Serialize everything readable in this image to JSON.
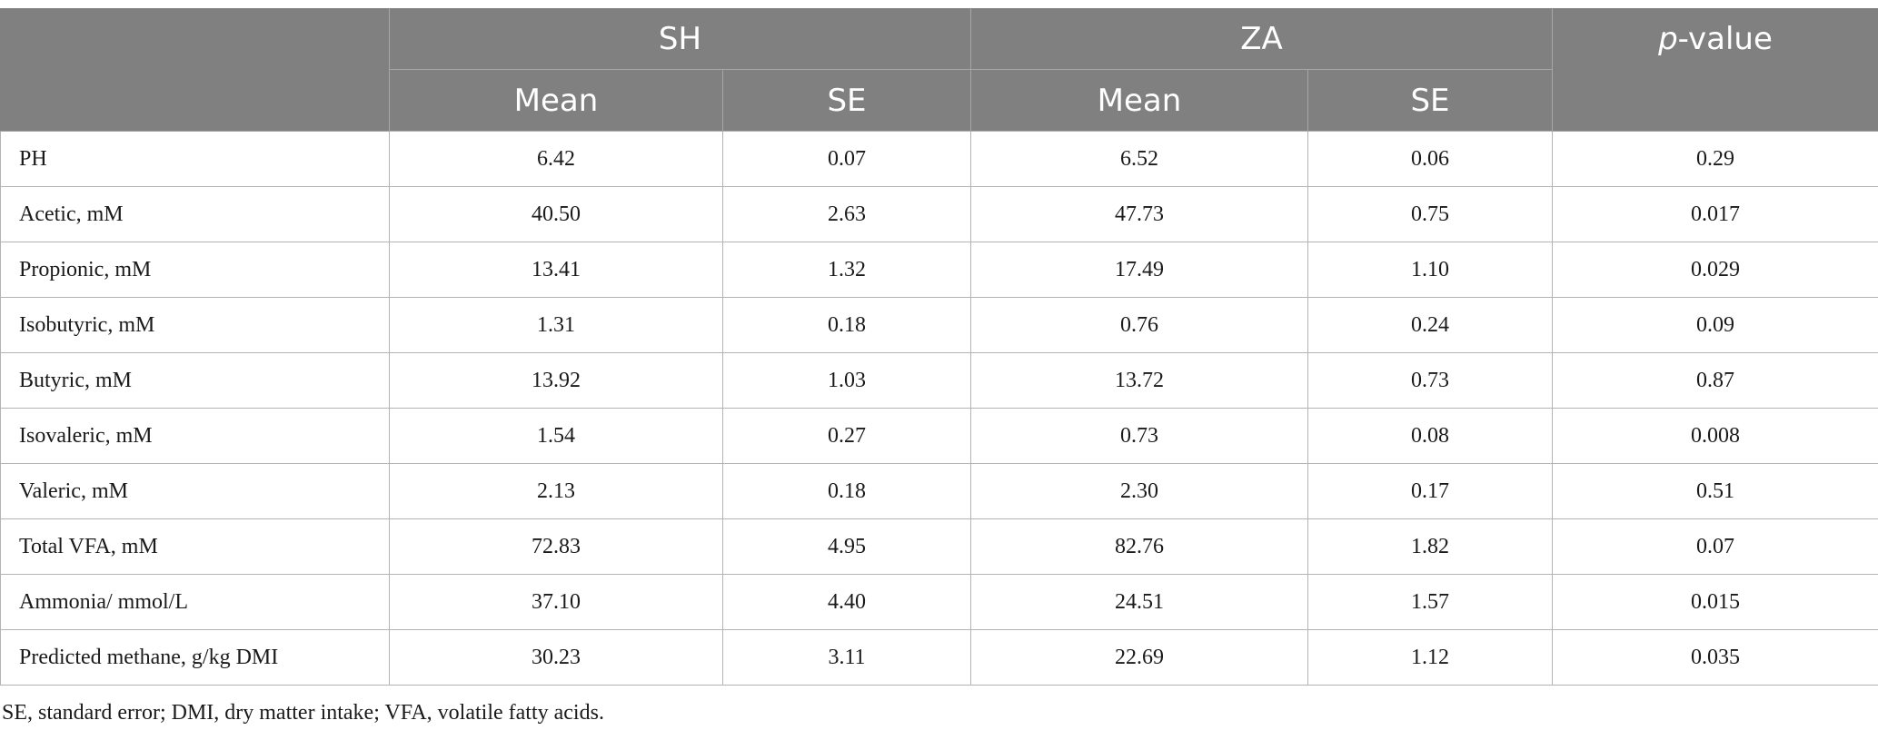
{
  "header": {
    "group1": "SH",
    "group2": "ZA",
    "pvalue_italic": "p",
    "pvalue_rest": "-value",
    "sub": [
      "Mean",
      "SE",
      "Mean",
      "SE"
    ]
  },
  "rows": [
    {
      "label": "PH",
      "sh_mean": "6.42",
      "sh_se": "0.07",
      "za_mean": "6.52",
      "za_se": "0.06",
      "p": "0.29"
    },
    {
      "label": "Acetic, mM",
      "sh_mean": "40.50",
      "sh_se": "2.63",
      "za_mean": "47.73",
      "za_se": "0.75",
      "p": "0.017"
    },
    {
      "label": "Propionic, mM",
      "sh_mean": "13.41",
      "sh_se": "1.32",
      "za_mean": "17.49",
      "za_se": "1.10",
      "p": "0.029"
    },
    {
      "label": "Isobutyric, mM",
      "sh_mean": "1.31",
      "sh_se": "0.18",
      "za_mean": "0.76",
      "za_se": "0.24",
      "p": "0.09"
    },
    {
      "label": "Butyric, mM",
      "sh_mean": "13.92",
      "sh_se": "1.03",
      "za_mean": "13.72",
      "za_se": "0.73",
      "p": "0.87"
    },
    {
      "label": "Isovaleric, mM",
      "sh_mean": "1.54",
      "sh_se": "0.27",
      "za_mean": "0.73",
      "za_se": "0.08",
      "p": "0.008"
    },
    {
      "label": "Valeric, mM",
      "sh_mean": "2.13",
      "sh_se": "0.18",
      "za_mean": "2.30",
      "za_se": "0.17",
      "p": "0.51"
    },
    {
      "label": "Total VFA, mM",
      "sh_mean": "72.83",
      "sh_se": "4.95",
      "za_mean": "82.76",
      "za_se": "1.82",
      "p": "0.07"
    },
    {
      "label": "Ammonia/ mmol/L",
      "sh_mean": "37.10",
      "sh_se": "4.40",
      "za_mean": "24.51",
      "za_se": "1.57",
      "p": "0.015"
    },
    {
      "label": "Predicted methane, g/kg DMI",
      "sh_mean": "30.23",
      "sh_se": "3.11",
      "za_mean": "22.69",
      "za_se": "1.12",
      "p": "0.035"
    }
  ],
  "footnote": "SE, standard error; DMI, dry matter intake; VFA, volatile fatty acids."
}
